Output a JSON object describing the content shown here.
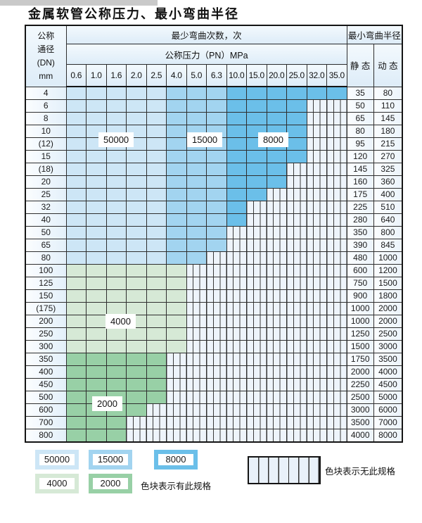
{
  "title": "金属软管公称压力、最小弯曲半径",
  "table": {
    "corner_lines": [
      "公称",
      "通径",
      "(DN)",
      "mm"
    ],
    "bend_cycles_header": "最少弯曲次数，次",
    "pressure_header": "公称压力（PN）MPa",
    "radius_header": "最小弯曲半径",
    "static_header": "静 态",
    "dynamic_header": "动 态",
    "pressure_columns": [
      "0.6",
      "1.0",
      "1.6",
      "2.0",
      "2.5",
      "4.0",
      "5.0",
      "6.3",
      "10.0",
      "15.0",
      "20.0",
      "25.0",
      "32.0",
      "35.0"
    ],
    "blue_column_groups": [
      {
        "from": 0,
        "to": 4,
        "cycles": "50000"
      },
      {
        "from": 5,
        "to": 7,
        "cycles": "15000"
      },
      {
        "from": 8,
        "to": 13,
        "cycles": "8000"
      }
    ],
    "rows": [
      {
        "dn": "4",
        "zone": "blue",
        "available_cols": 14,
        "static": "35",
        "dynamic": "80"
      },
      {
        "dn": "6",
        "zone": "blue",
        "available_cols": 12,
        "static": "50",
        "dynamic": "110"
      },
      {
        "dn": "8",
        "zone": "blue",
        "available_cols": 12,
        "static": "65",
        "dynamic": "145"
      },
      {
        "dn": "10",
        "zone": "blue",
        "available_cols": 12,
        "static": "80",
        "dynamic": "180"
      },
      {
        "dn": "(12)",
        "zone": "blue",
        "available_cols": 12,
        "static": "95",
        "dynamic": "215"
      },
      {
        "dn": "15",
        "zone": "blue",
        "available_cols": 12,
        "static": "120",
        "dynamic": "270"
      },
      {
        "dn": "(18)",
        "zone": "blue",
        "available_cols": 11,
        "static": "145",
        "dynamic": "325"
      },
      {
        "dn": "20",
        "zone": "blue",
        "available_cols": 11,
        "static": "160",
        "dynamic": "360"
      },
      {
        "dn": "25",
        "zone": "blue",
        "available_cols": 10,
        "static": "175",
        "dynamic": "400"
      },
      {
        "dn": "32",
        "zone": "blue",
        "available_cols": 9,
        "static": "225",
        "dynamic": "510"
      },
      {
        "dn": "40",
        "zone": "blue",
        "available_cols": 9,
        "static": "280",
        "dynamic": "640"
      },
      {
        "dn": "50",
        "zone": "blue",
        "available_cols": 8,
        "static": "350",
        "dynamic": "800"
      },
      {
        "dn": "65",
        "zone": "blue",
        "available_cols": 8,
        "static": "390",
        "dynamic": "845"
      },
      {
        "dn": "80",
        "zone": "blue",
        "available_cols": 7,
        "static": "480",
        "dynamic": "1000"
      },
      {
        "dn": "100",
        "zone": "4000",
        "available_cols": 6,
        "static": "600",
        "dynamic": "1200"
      },
      {
        "dn": "125",
        "zone": "4000",
        "available_cols": 6,
        "static": "750",
        "dynamic": "1500"
      },
      {
        "dn": "150",
        "zone": "4000",
        "available_cols": 6,
        "static": "900",
        "dynamic": "1800"
      },
      {
        "dn": "(175)",
        "zone": "4000",
        "available_cols": 6,
        "static": "1000",
        "dynamic": "2000"
      },
      {
        "dn": "200",
        "zone": "4000",
        "available_cols": 6,
        "static": "1000",
        "dynamic": "2000"
      },
      {
        "dn": "250",
        "zone": "4000",
        "available_cols": 6,
        "static": "1250",
        "dynamic": "2500"
      },
      {
        "dn": "300",
        "zone": "4000",
        "available_cols": 6,
        "static": "1500",
        "dynamic": "3000"
      },
      {
        "dn": "350",
        "zone": "2000",
        "available_cols": 5,
        "static": "1750",
        "dynamic": "3500"
      },
      {
        "dn": "400",
        "zone": "2000",
        "available_cols": 5,
        "static": "2000",
        "dynamic": "4000"
      },
      {
        "dn": "450",
        "zone": "2000",
        "available_cols": 5,
        "static": "2250",
        "dynamic": "4500"
      },
      {
        "dn": "500",
        "zone": "2000",
        "available_cols": 5,
        "static": "2500",
        "dynamic": "5000"
      },
      {
        "dn": "600",
        "zone": "2000",
        "available_cols": 4,
        "static": "3000",
        "dynamic": "6000"
      },
      {
        "dn": "700",
        "zone": "2000",
        "available_cols": 3,
        "static": "3500",
        "dynamic": "7000"
      },
      {
        "dn": "800",
        "zone": "2000",
        "available_cols": 3,
        "static": "4000",
        "dynamic": "8000"
      }
    ]
  },
  "zone_colors": {
    "50000": "#cde6f6",
    "15000": "#a2d4f0",
    "8000": "#6bbfe9",
    "4000": "#d6e9d6",
    "2000": "#98d0a6"
  },
  "overlay_labels": {
    "b50000": "50000",
    "b15000": "15000",
    "b8000": "8000",
    "g4000": "4000",
    "g2000": "2000"
  },
  "legend": {
    "items": [
      {
        "label": "50000",
        "color": "#cde6f6"
      },
      {
        "label": "15000",
        "color": "#a2d4f0"
      },
      {
        "label": "8000",
        "color": "#6bbfe9"
      },
      {
        "label": "4000",
        "color": "#d6e9d6"
      },
      {
        "label": "2000",
        "color": "#98d0a6"
      }
    ],
    "available_note": "色块表示有此规格",
    "unavailable_note": "色块表示无此规格"
  }
}
